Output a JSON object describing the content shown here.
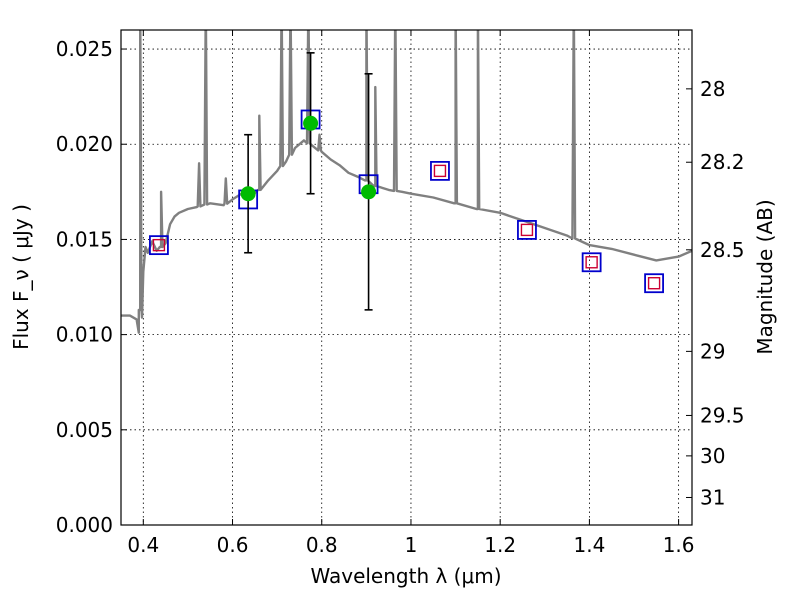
{
  "chart_data": {
    "type": "scatter",
    "title": "",
    "xlabel": "Wavelength  λ (μm)",
    "ylabel": "Flux  F_ν  ( μJy )",
    "y2label": "Magnitude (AB)",
    "xlim": [
      0.35,
      1.63
    ],
    "ylim": [
      0.0,
      0.026
    ],
    "grid": true,
    "colors": {
      "spectrum": "#808080",
      "observed": "#00bb00",
      "model_square": "#0000cc",
      "predicted_square": "#cc0033",
      "errorbar": "#000000"
    },
    "xticks": [
      0.4,
      0.6,
      0.8,
      1.0,
      1.2,
      1.4,
      1.6
    ],
    "xtick_labels": [
      "0.4",
      "0.6",
      "0.8",
      "1",
      "1.2",
      "1.4",
      "1.6"
    ],
    "yticks": [
      0.0,
      0.005,
      0.01,
      0.015,
      0.02,
      0.025
    ],
    "ytick_labels": [
      "0.000",
      "0.005",
      "0.010",
      "0.015",
      "0.020",
      "0.025"
    ],
    "y2ticks": [
      {
        "label": "28",
        "mag": 28.0
      },
      {
        "label": "28.2",
        "mag": 28.2
      },
      {
        "label": "28.5",
        "mag": 28.5
      },
      {
        "label": "29",
        "mag": 29.0
      },
      {
        "label": "29.5",
        "mag": 29.5
      },
      {
        "label": "30",
        "mag": 30.0
      },
      {
        "label": "31",
        "mag": 31.0
      }
    ],
    "series": [
      {
        "type": "line",
        "x": [
          0.35,
          0.37,
          0.385,
          0.39,
          0.393,
          0.397,
          0.4,
          0.405,
          0.41,
          0.42,
          0.43,
          0.44,
          0.45,
          0.46,
          0.47,
          0.48,
          0.5,
          0.52,
          0.55,
          0.58,
          0.6,
          0.62,
          0.64,
          0.66,
          0.68,
          0.7,
          0.72,
          0.74,
          0.76,
          0.78,
          0.8,
          0.82,
          0.84,
          0.86,
          0.88,
          0.9,
          0.92,
          0.95,
          0.98,
          1.0,
          1.05,
          1.1,
          1.15,
          1.2,
          1.25,
          1.3,
          1.35,
          1.4,
          1.45,
          1.5,
          1.55,
          1.6,
          1.63
        ],
        "y": [
          0.011,
          0.011,
          0.0108,
          0.0101,
          0.0113,
          0.0109,
          0.0133,
          0.0146,
          0.0143,
          0.0149,
          0.0144,
          0.0146,
          0.0148,
          0.0158,
          0.0162,
          0.0164,
          0.0166,
          0.0167,
          0.0169,
          0.0168,
          0.0171,
          0.0174,
          0.0172,
          0.0176,
          0.0181,
          0.0186,
          0.0191,
          0.0198,
          0.0202,
          0.0199,
          0.0196,
          0.0192,
          0.0189,
          0.0185,
          0.0183,
          0.0181,
          0.0178,
          0.0176,
          0.0175,
          0.0174,
          0.0172,
          0.0169,
          0.0166,
          0.0164,
          0.016,
          0.0156,
          0.0152,
          0.0147,
          0.0145,
          0.0142,
          0.0139,
          0.0141,
          0.0144
        ],
        "emission_lines": [
          {
            "x": 0.393,
            "peak": 0.0275
          },
          {
            "x": 0.44,
            "peak": 0.0175
          },
          {
            "x": 0.525,
            "peak": 0.019
          },
          {
            "x": 0.54,
            "peak": 0.0275
          },
          {
            "x": 0.585,
            "peak": 0.0182
          },
          {
            "x": 0.66,
            "peak": 0.0215
          },
          {
            "x": 0.71,
            "peak": 0.0275
          },
          {
            "x": 0.73,
            "peak": 0.0275
          },
          {
            "x": 0.77,
            "peak": 0.0275
          },
          {
            "x": 0.795,
            "peak": 0.0205
          },
          {
            "x": 0.9,
            "peak": 0.0275
          },
          {
            "x": 0.92,
            "peak": 0.023
          },
          {
            "x": 0.965,
            "peak": 0.0275
          },
          {
            "x": 1.1,
            "peak": 0.0275
          },
          {
            "x": 1.15,
            "peak": 0.0275
          },
          {
            "x": 1.365,
            "peak": 0.0275
          }
        ]
      },
      {
        "type": "scatter",
        "points": [
          {
            "x": 0.635,
            "y": 0.0174,
            "yerr": 0.0031
          },
          {
            "x": 0.775,
            "y": 0.0211,
            "yerr": 0.0037
          },
          {
            "x": 0.905,
            "y": 0.0175,
            "yerr": 0.0062
          }
        ]
      },
      {
        "type": "scatter",
        "x": [
          0.435,
          0.635,
          0.775,
          0.905,
          1.065,
          1.26,
          1.405,
          1.545
        ],
        "y": [
          0.0147,
          0.0171,
          0.0213,
          0.0179,
          0.0186,
          0.0155,
          0.0138,
          0.0127
        ]
      },
      {
        "type": "scatter",
        "x": [
          0.435,
          1.065,
          1.26,
          1.405,
          1.545
        ],
        "y": [
          0.0147,
          0.0186,
          0.0155,
          0.0138,
          0.0127
        ]
      }
    ]
  }
}
